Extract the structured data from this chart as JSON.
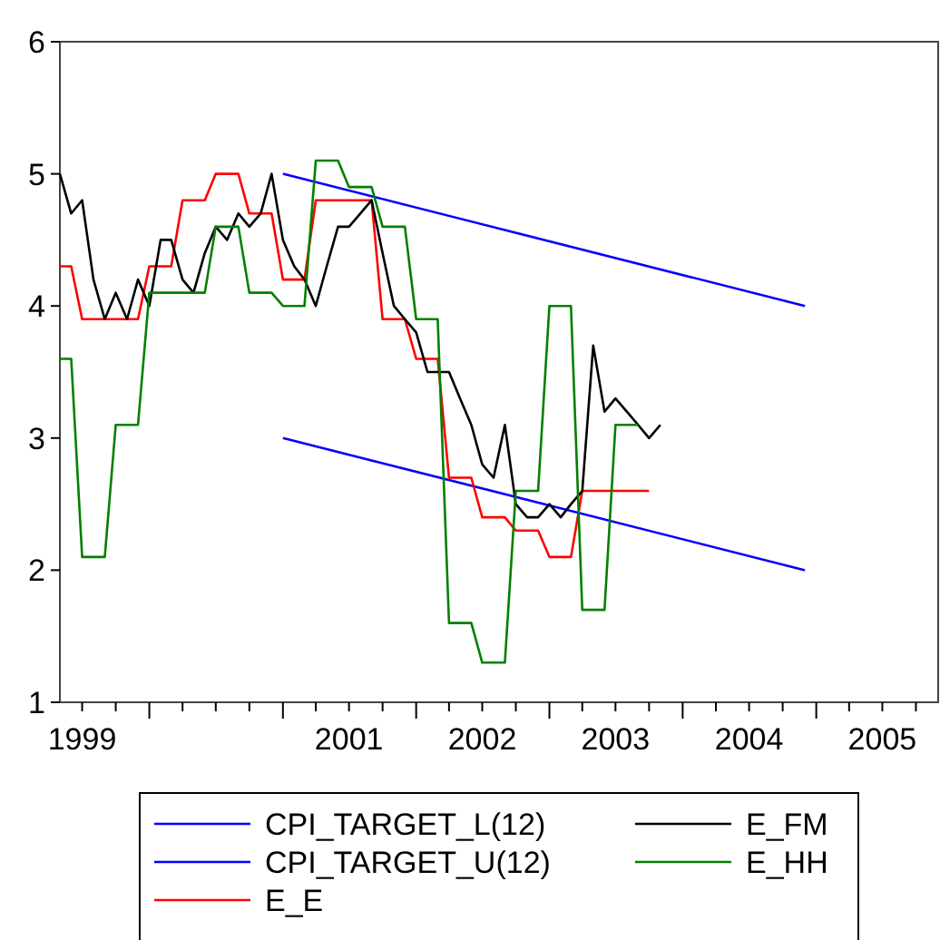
{
  "chart_data": {
    "type": "line",
    "x": [
      "1999-05",
      "1999-06",
      "1999-07",
      "1999-08",
      "1999-09",
      "1999-10",
      "1999-11",
      "1999-12",
      "2000-01",
      "2000-02",
      "2000-03",
      "2000-04",
      "2000-05",
      "2000-06",
      "2000-07",
      "2000-08",
      "2000-09",
      "2000-10",
      "2000-11",
      "2000-12",
      "2001-01",
      "2001-02",
      "2001-03",
      "2001-04",
      "2001-05",
      "2001-06",
      "2001-07",
      "2001-08",
      "2001-09",
      "2001-10",
      "2001-11",
      "2001-12",
      "2002-01",
      "2002-02",
      "2002-03",
      "2002-04",
      "2002-05",
      "2002-06",
      "2002-07",
      "2002-08",
      "2002-09",
      "2002-10",
      "2002-11",
      "2002-12",
      "2003-01",
      "2003-02",
      "2003-03",
      "2003-04",
      "2003-05",
      "2003-06",
      "2003-07",
      "2003-08",
      "2003-09",
      "2003-10",
      "2003-11"
    ],
    "series": [
      {
        "name": "CPI_TARGET_L(12)",
        "color": "#0000ff",
        "x": [
          "2001-01",
          "2004-12"
        ],
        "values": [
          3.0,
          2.0
        ]
      },
      {
        "name": "CPI_TARGET_U(12)",
        "color": "#0000ff",
        "x": [
          "2001-01",
          "2004-12"
        ],
        "values": [
          5.0,
          4.0
        ]
      },
      {
        "name": "E_E",
        "color": "#ff0000",
        "values": [
          4.3,
          4.3,
          3.9,
          3.9,
          3.9,
          3.9,
          3.9,
          3.9,
          4.3,
          4.3,
          4.3,
          4.8,
          4.8,
          4.8,
          5.0,
          5.0,
          5.0,
          4.7,
          4.7,
          4.7,
          4.2,
          4.2,
          4.2,
          4.8,
          4.8,
          4.8,
          4.8,
          4.8,
          4.8,
          3.9,
          3.9,
          3.9,
          3.6,
          3.6,
          3.6,
          2.7,
          2.7,
          2.7,
          2.4,
          2.4,
          2.4,
          2.3,
          2.3,
          2.3,
          2.1,
          2.1,
          2.1,
          2.6,
          2.6,
          2.6,
          2.6,
          2.6,
          2.6,
          2.6,
          null
        ]
      },
      {
        "name": "E_FM",
        "color": "#000000",
        "values": [
          5.0,
          4.7,
          4.8,
          4.2,
          3.9,
          4.1,
          3.9,
          4.2,
          4.0,
          4.5,
          4.5,
          4.2,
          4.1,
          4.4,
          4.6,
          4.5,
          4.7,
          4.6,
          4.7,
          5.0,
          4.5,
          4.3,
          4.2,
          4.0,
          4.3,
          4.6,
          4.6,
          4.7,
          4.8,
          4.4,
          4.0,
          3.9,
          3.8,
          3.5,
          3.5,
          3.5,
          3.3,
          3.1,
          2.8,
          2.7,
          3.1,
          2.5,
          2.4,
          2.4,
          2.5,
          2.4,
          2.5,
          2.6,
          3.7,
          3.2,
          3.3,
          3.2,
          3.1,
          3.0,
          3.1
        ]
      },
      {
        "name": "E_HH",
        "color": "#008000",
        "values": [
          3.6,
          3.6,
          2.1,
          2.1,
          2.1,
          3.1,
          3.1,
          3.1,
          4.1,
          4.1,
          4.1,
          4.1,
          4.1,
          4.1,
          4.6,
          4.6,
          4.6,
          4.1,
          4.1,
          4.1,
          4.0,
          4.0,
          4.0,
          5.1,
          5.1,
          5.1,
          4.9,
          4.9,
          4.9,
          4.6,
          4.6,
          4.6,
          3.9,
          3.9,
          3.9,
          1.6,
          1.6,
          1.6,
          1.3,
          1.3,
          1.3,
          2.6,
          2.6,
          2.6,
          4.0,
          4.0,
          4.0,
          1.7,
          1.7,
          1.7,
          3.1,
          3.1,
          3.1,
          null,
          null
        ]
      }
    ],
    "xlim": [
      "1999-05",
      "2005-12"
    ],
    "xticks": [
      {
        "value": "1999-07",
        "label": "1999"
      },
      {
        "value": "1999-10",
        "label": null
      },
      {
        "value": "2000-01",
        "label": null
      },
      {
        "value": "2000-04",
        "label": null
      },
      {
        "value": "2000-07",
        "label": null
      },
      {
        "value": "2000-10",
        "label": null
      },
      {
        "value": "2001-01",
        "label": null
      },
      {
        "value": "2001-04",
        "label": null
      },
      {
        "value": "2001-07",
        "label": "2001"
      },
      {
        "value": "2001-10",
        "label": null
      },
      {
        "value": "2002-01",
        "label": null
      },
      {
        "value": "2002-04",
        "label": null
      },
      {
        "value": "2002-07",
        "label": "2002"
      },
      {
        "value": "2002-10",
        "label": null
      },
      {
        "value": "2003-01",
        "label": null
      },
      {
        "value": "2003-04",
        "label": null
      },
      {
        "value": "2003-07",
        "label": "2003"
      },
      {
        "value": "2003-10",
        "label": null
      },
      {
        "value": "2004-01",
        "label": null
      },
      {
        "value": "2004-04",
        "label": null
      },
      {
        "value": "2004-07",
        "label": "2004"
      },
      {
        "value": "2004-10",
        "label": null
      },
      {
        "value": "2005-01",
        "label": null
      },
      {
        "value": "2005-04",
        "label": null
      },
      {
        "value": "2005-07",
        "label": "2005"
      },
      {
        "value": "2005-10",
        "label": null
      }
    ],
    "ylim": [
      1,
      6
    ],
    "yticks": [
      1,
      2,
      3,
      4,
      5,
      6
    ],
    "grid": false,
    "legend": "bottom"
  }
}
